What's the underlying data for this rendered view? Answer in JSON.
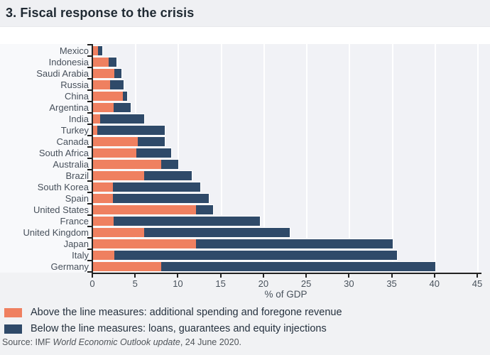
{
  "title": "3. Fiscal response to the crisis",
  "chart_data": {
    "type": "bar",
    "orientation": "horizontal",
    "stacked": true,
    "categories": [
      "Mexico",
      "Indonesia",
      "Saudi Arabia",
      "Russia",
      "China",
      "Argentina",
      "India",
      "Turkey",
      "Canada",
      "South Africa",
      "Australia",
      "Brazil",
      "South Korea",
      "Spain",
      "United States",
      "France",
      "United Kingdom",
      "Japan",
      "Italy",
      "Germany"
    ],
    "series": [
      {
        "name": "Above the line measures: additional spending and foregone revenue",
        "color": "#EF8060",
        "values": [
          0.6,
          1.8,
          2.5,
          2.0,
          3.5,
          2.4,
          0.8,
          0.5,
          5.2,
          5.1,
          8.0,
          6.0,
          2.3,
          2.3,
          12.0,
          2.4,
          6.0,
          12.0,
          2.5,
          8.0
        ]
      },
      {
        "name": "Below the line measures: loans, guarantees and equity injections",
        "color": "#2F4A69",
        "values": [
          0.5,
          0.9,
          0.8,
          1.6,
          0.5,
          2.0,
          5.2,
          7.9,
          3.2,
          4.0,
          2.0,
          5.5,
          10.2,
          11.2,
          2.0,
          17.1,
          17.0,
          23.0,
          33.0,
          32.0
        ]
      }
    ],
    "totals": [
      1.1,
      2.7,
      3.3,
      3.6,
      4.0,
      4.4,
      6.0,
      8.4,
      8.4,
      9.1,
      10.0,
      11.5,
      12.5,
      13.5,
      14.0,
      19.5,
      23.0,
      35.0,
      35.5,
      40.0
    ],
    "xlabel": "% of GDP",
    "xlim": [
      0,
      45
    ],
    "xticks": [
      0,
      5,
      10,
      15,
      20,
      25,
      30,
      35,
      40,
      45
    ],
    "grid": "vertical white gridlines every 5",
    "legend_position": "bottom-left"
  },
  "source": {
    "prefix": "Source: IMF ",
    "italic": "World Economic Outlook update",
    "suffix": ", 24 June 2020."
  }
}
